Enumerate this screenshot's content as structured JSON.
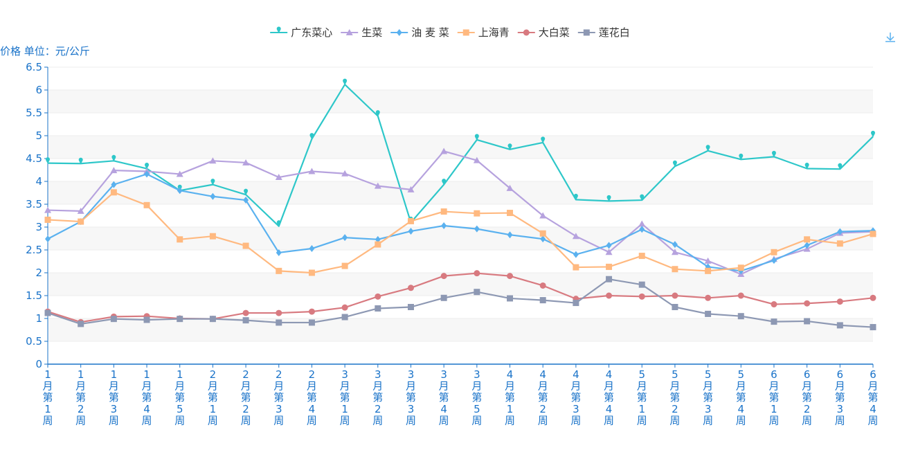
{
  "chart_data": {
    "type": "line",
    "ylabel": "价格 单位：元/公斤",
    "ylim": [
      0,
      6.5
    ],
    "yticks": [
      "0",
      "0.5",
      "1",
      "1.5",
      "2",
      "2.5",
      "3",
      "3.5",
      "4",
      "4.5",
      "5",
      "5.5",
      "6",
      "6.5"
    ],
    "categories": [
      "1月第1周",
      "1月第2周",
      "1月第3周",
      "1月第4周",
      "1月第5周",
      "2月第1周",
      "2月第2周",
      "2月第3周",
      "2月第4周",
      "3月第1周",
      "3月第2周",
      "3月第3周",
      "3月第4周",
      "3月第5周",
      "4月第1周",
      "4月第2周",
      "4月第3周",
      "4月第4周",
      "5月第1周",
      "5月第2周",
      "5月第3周",
      "5月第4周",
      "6月第1周",
      "6月第2周",
      "6月第3周",
      "6月第4周"
    ],
    "legend_position": "top-center",
    "series": [
      {
        "name": "广东菜心",
        "color": "#2ec7c9",
        "symbol": "pin",
        "values": [
          4.4,
          4.39,
          4.45,
          4.28,
          3.8,
          3.93,
          3.71,
          3.02,
          4.93,
          6.12,
          5.43,
          3.1,
          3.93,
          4.91,
          4.7,
          4.85,
          3.6,
          3.57,
          3.59,
          4.33,
          4.67,
          4.48,
          4.54,
          4.28,
          4.27,
          4.98
        ]
      },
      {
        "name": "生菜",
        "color": "#b6a2de",
        "symbol": "triangle",
        "values": [
          3.37,
          3.35,
          4.24,
          4.22,
          4.16,
          4.45,
          4.41,
          4.09,
          4.22,
          4.17,
          3.9,
          3.82,
          4.66,
          4.46,
          3.85,
          3.25,
          2.8,
          2.45,
          3.07,
          2.45,
          2.26,
          1.97,
          2.3,
          2.52,
          2.87,
          2.9
        ]
      },
      {
        "name": "油 麦 菜",
        "color": "#5ab1ef",
        "symbol": "diamond",
        "values": [
          2.74,
          3.12,
          3.93,
          4.16,
          3.8,
          3.67,
          3.59,
          2.44,
          2.53,
          2.77,
          2.73,
          2.91,
          3.03,
          2.96,
          2.83,
          2.74,
          2.4,
          2.6,
          2.95,
          2.62,
          2.13,
          2.04,
          2.27,
          2.6,
          2.9,
          2.92
        ]
      },
      {
        "name": "上海青",
        "color": "#ffb980",
        "symbol": "square",
        "values": [
          3.16,
          3.12,
          3.76,
          3.48,
          2.73,
          2.8,
          2.59,
          2.04,
          2.0,
          2.15,
          2.62,
          3.13,
          3.34,
          3.3,
          3.31,
          2.86,
          2.12,
          2.13,
          2.37,
          2.08,
          2.04,
          2.11,
          2.45,
          2.73,
          2.64,
          2.85
        ]
      },
      {
        "name": "大白菜",
        "color": "#d87a80",
        "symbol": "circle",
        "values": [
          1.15,
          0.92,
          1.04,
          1.05,
          1.0,
          0.99,
          1.12,
          1.12,
          1.15,
          1.24,
          1.48,
          1.67,
          1.93,
          1.99,
          1.93,
          1.72,
          1.43,
          1.5,
          1.48,
          1.5,
          1.45,
          1.5,
          1.31,
          1.33,
          1.37,
          1.45
        ]
      },
      {
        "name": "莲花白",
        "color": "#8d98b3",
        "symbol": "square",
        "values": [
          1.12,
          0.88,
          0.99,
          0.97,
          0.99,
          0.99,
          0.96,
          0.91,
          0.91,
          1.03,
          1.22,
          1.25,
          1.45,
          1.58,
          1.44,
          1.4,
          1.34,
          1.86,
          1.74,
          1.25,
          1.1,
          1.05,
          0.93,
          0.94,
          0.85,
          0.81
        ]
      }
    ]
  },
  "toolbox": {
    "download_icon": "download-icon"
  }
}
